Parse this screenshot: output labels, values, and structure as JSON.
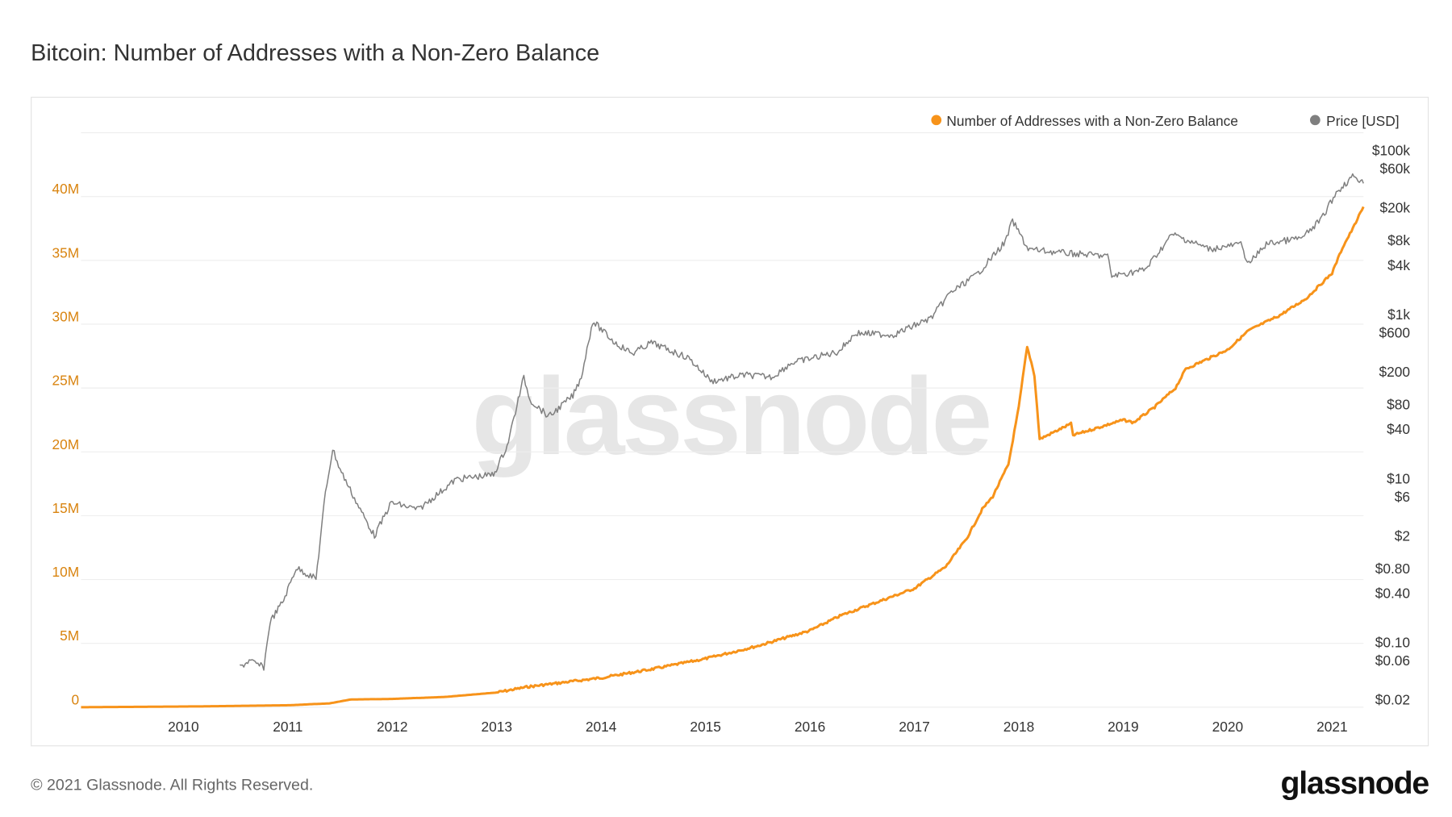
{
  "title": "Bitcoin: Number of Addresses with a Non-Zero Balance",
  "footer": "© 2021 Glassnode. All Rights Reserved.",
  "logo": "glassnode",
  "watermark": "glassnode",
  "colors": {
    "addresses": "#f7931a",
    "price": "#7f7f7f",
    "left_axis": "#d98410",
    "grid": "#eeeeee"
  },
  "chart_data": {
    "type": "line",
    "title": "Bitcoin: Number of Addresses with a Non-Zero Balance",
    "xlabel": "",
    "x_ticks": [
      "2010",
      "2011",
      "2012",
      "2013",
      "2014",
      "2015",
      "2016",
      "2017",
      "2018",
      "2019",
      "2020",
      "2021"
    ],
    "xlim": [
      2009.02,
      2021.3
    ],
    "legend": {
      "placement": "top-right",
      "entries": [
        "Number of Addresses with a Non-Zero Balance",
        "Price [USD]"
      ]
    },
    "grid": true,
    "left_axis": {
      "scale": "linear",
      "ylim": [
        0,
        45000000
      ],
      "ticks": [
        0,
        5000000,
        10000000,
        15000000,
        20000000,
        25000000,
        30000000,
        35000000,
        40000000
      ],
      "tick_labels": [
        "0",
        "5M",
        "10M",
        "15M",
        "20M",
        "25M",
        "30M",
        "35M",
        "40M"
      ]
    },
    "right_axis": {
      "scale": "log",
      "ylim": [
        0.02,
        100000
      ],
      "ticks": [
        100000,
        60000,
        20000,
        8000,
        4000,
        1000,
        600,
        200,
        80,
        40,
        10,
        6,
        2,
        0.8,
        0.4,
        0.1,
        0.06,
        0.02
      ],
      "tick_labels": [
        "$100k",
        "$60k",
        "$20k",
        "$8k",
        "$4k",
        "$1k",
        "$600",
        "$200",
        "$80",
        "$40",
        "$10",
        "$6",
        "$2",
        "$0.80",
        "$0.40",
        "$0.10",
        "$0.06",
        "$0.02"
      ]
    },
    "series": [
      {
        "name": "Number of Addresses with a Non-Zero Balance",
        "axis": "left",
        "color": "#f7931a",
        "x": [
          2009.02,
          2010.0,
          2011.0,
          2011.4,
          2011.6,
          2012.0,
          2012.5,
          2013.0,
          2013.3,
          2013.5,
          2014.0,
          2014.5,
          2015.0,
          2015.5,
          2016.0,
          2016.3,
          2016.5,
          2017.0,
          2017.3,
          2017.5,
          2017.65,
          2017.75,
          2017.9,
          2018.0,
          2018.05,
          2018.08,
          2018.12,
          2018.15,
          2018.2,
          2018.35,
          2018.5,
          2018.52,
          2018.6,
          2018.8,
          2019.0,
          2019.1,
          2019.3,
          2019.5,
          2019.6,
          2020.0,
          2020.2,
          2020.5,
          2020.75,
          2020.9,
          2021.0,
          2021.1,
          2021.2,
          2021.3
        ],
        "y": [
          0,
          50000,
          150000,
          300000,
          600000,
          650000,
          800000,
          1150000,
          1600000,
          1800000,
          2300000,
          3000000,
          3800000,
          4800000,
          6000000,
          7200000,
          7800000,
          9300000,
          11000000,
          13200000,
          15500000,
          16500000,
          19000000,
          23500000,
          26500000,
          28200000,
          27000000,
          26000000,
          21000000,
          21600000,
          22200000,
          21300000,
          21500000,
          22000000,
          22500000,
          22300000,
          23500000,
          25000000,
          26500000,
          28000000,
          29500000,
          30700000,
          32000000,
          33200000,
          34000000,
          36000000,
          37500000,
          39200000
        ]
      },
      {
        "name": "Price [USD]",
        "axis": "right",
        "color": "#7f7f7f",
        "x": [
          2010.54,
          2010.63,
          2010.77,
          2010.83,
          2010.96,
          2011.08,
          2011.27,
          2011.36,
          2011.43,
          2011.5,
          2011.68,
          2011.83,
          2011.99,
          2012.25,
          2012.61,
          2012.97,
          2013.1,
          2013.26,
          2013.32,
          2013.5,
          2013.73,
          2013.81,
          2013.92,
          2014.13,
          2014.3,
          2014.48,
          2014.84,
          2015.06,
          2015.37,
          2015.64,
          2015.82,
          2016.27,
          2016.44,
          2016.8,
          2017.16,
          2017.34,
          2017.6,
          2017.87,
          2017.94,
          2018.09,
          2018.4,
          2018.85,
          2018.89,
          2019.21,
          2019.47,
          2019.83,
          2020.14,
          2020.19,
          2020.37,
          2020.72,
          2020.9,
          2021.04,
          2021.21,
          2021.3
        ],
        "y": [
          0.05,
          0.06,
          0.05,
          0.18,
          0.33,
          0.82,
          0.6,
          6.7,
          23,
          13,
          4.5,
          2.0,
          5.1,
          4.2,
          9.8,
          11.2,
          25,
          174,
          91,
          57,
          103,
          174,
          835,
          457,
          336,
          457,
          294,
          154,
          184,
          174,
          257,
          353,
          597,
          569,
          910,
          1830,
          3100,
          7700,
          14000,
          6300,
          5700,
          5200,
          2950,
          3550,
          9600,
          6300,
          7300,
          4000,
          7300,
          8700,
          14800,
          31000,
          50000,
          40000
        ]
      }
    ]
  }
}
